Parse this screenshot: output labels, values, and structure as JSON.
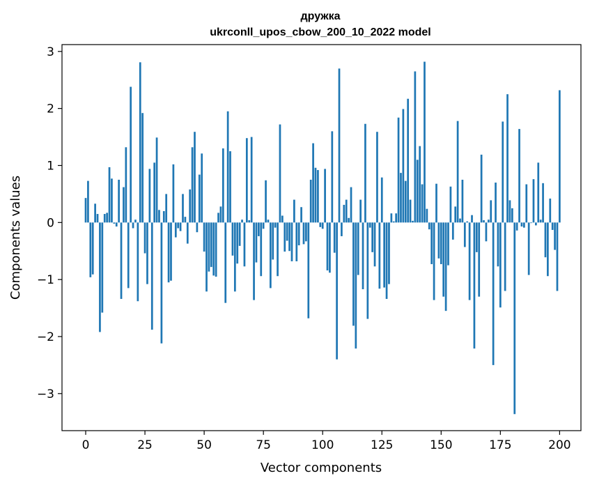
{
  "chart_data": {
    "type": "bar",
    "title": [
      "дружка",
      "ukrconll_upos_cbow_200_10_2022 model"
    ],
    "xlabel": "Vector components",
    "ylabel": "Components values",
    "xlim": [
      -10,
      209
    ],
    "ylim": [
      -3.65,
      3.12
    ],
    "xticks": [
      0,
      25,
      50,
      75,
      100,
      125,
      150,
      175,
      200
    ],
    "yticks": [
      -3,
      -2,
      -1,
      0,
      1,
      2,
      3
    ],
    "xtick_labels": [
      "0",
      "25",
      "50",
      "75",
      "100",
      "125",
      "150",
      "175",
      "200"
    ],
    "ytick_labels": [
      "−3",
      "−2",
      "−1",
      "0",
      "1",
      "2",
      "3"
    ],
    "grid": false,
    "bar_color": "#1f77b4",
    "series": [
      {
        "values": [
          0.43,
          0.73,
          -0.96,
          -0.91,
          0.33,
          0.15,
          -1.92,
          -1.58,
          0.15,
          0.17,
          0.97,
          0.77,
          -0.02,
          -0.07,
          0.75,
          -1.34,
          0.62,
          1.32,
          -1.15,
          2.38,
          -0.1,
          0.05,
          -1.38,
          2.81,
          1.92,
          -0.54,
          -1.08,
          0.94,
          -1.88,
          1.05,
          1.49,
          0.22,
          -2.12,
          0.2,
          0.5,
          -1.05,
          -1.02,
          1.02,
          -0.26,
          -0.1,
          -0.15,
          0.5,
          0.1,
          -0.37,
          0.58,
          1.32,
          1.59,
          -0.17,
          0.84,
          1.21,
          -0.51,
          -1.21,
          -0.86,
          -0.78,
          -0.93,
          -0.95,
          0.17,
          0.28,
          1.3,
          -1.41,
          1.95,
          1.25,
          -0.58,
          -1.21,
          -0.72,
          -0.41,
          0.05,
          -0.77,
          1.48,
          0.04,
          1.5,
          -1.36,
          -0.7,
          -0.24,
          -0.94,
          -0.11,
          0.74,
          0.05,
          -1.15,
          -0.65,
          -0.09,
          -0.94,
          1.72,
          0.12,
          -0.51,
          -0.32,
          -0.5,
          -0.68,
          0.4,
          -0.68,
          -0.4,
          0.27,
          -0.38,
          -0.33,
          -1.68,
          0.75,
          1.39,
          0.96,
          0.92,
          -0.08,
          -0.11,
          0.94,
          -0.84,
          -0.88,
          1.6,
          -0.53,
          -2.4,
          2.7,
          -0.24,
          0.31,
          0.4,
          0.08,
          0.62,
          -1.81,
          -2.21,
          -0.92,
          0.4,
          -1.17,
          1.73,
          -1.69,
          -0.09,
          -0.52,
          -0.77,
          1.59,
          -1.16,
          0.79,
          -1.14,
          -1.34,
          -1.08,
          0.16,
          0.02,
          0.16,
          1.84,
          0.87,
          1.99,
          0.73,
          2.17,
          0.4,
          0.03,
          2.65,
          1.1,
          1.34,
          0.67,
          2.82,
          0.24,
          -0.12,
          -0.73,
          -1.36,
          0.68,
          -0.63,
          -0.73,
          -1.3,
          -1.55,
          -0.75,
          0.63,
          -0.3,
          0.28,
          1.78,
          0.07,
          0.75,
          -0.43,
          0.02,
          -1.36,
          0.13,
          -2.21,
          -0.52,
          -1.3,
          1.19,
          0.04,
          -0.33,
          0.05,
          0.39,
          -2.5,
          0.7,
          -0.77,
          -1.49,
          1.77,
          -1.2,
          2.25,
          0.39,
          0.25,
          -3.36,
          -0.14,
          1.64,
          -0.07,
          -0.09,
          0.67,
          -0.92,
          -0.01,
          0.76,
          -0.05,
          1.05,
          0.05,
          0.69,
          -0.61,
          -0.94,
          0.42,
          -0.13,
          -0.48,
          -1.2,
          2.32
        ]
      }
    ]
  }
}
